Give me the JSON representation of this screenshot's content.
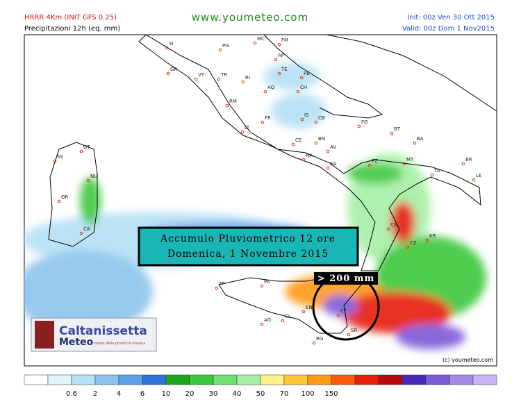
{
  "header": {
    "model": "HRRR 4Km (INIT GFS 0.25)",
    "field": "Precipitazioni 12h (eq. mm)",
    "site": "www.youmeteo.com",
    "init": "Init: 00z Ven  30 Ott 2015",
    "valid": "Valid: 00z Dom 1   Nov2015"
  },
  "banner": {
    "line1": "Accumulo Pluviometrico 12 ore",
    "line2": "Domenica, 1 Novembre 2015"
  },
  "highlight": "> 200 mm",
  "logo": {
    "name": "Caltanissetta",
    "sub": "Meteo",
    "tagline": "Il meteo della provincia nissena"
  },
  "copyright": "(c) youmeteo.com",
  "cities": [
    "SI",
    "PG",
    "MC",
    "FM",
    "AP",
    "TE",
    "GR",
    "VT",
    "TR",
    "RI",
    "AQ",
    "PE",
    "CH",
    "RM",
    "IS",
    "CB",
    "LT",
    "FR",
    "FG",
    "BT",
    "BA",
    "CE",
    "BN",
    "AV",
    "NA",
    "SA",
    "PZ",
    "MT",
    "TA",
    "BR",
    "LE",
    "SS",
    "OT",
    "NU",
    "OR",
    "CA",
    "CS",
    "KR",
    "CZ",
    "TP",
    "PA",
    "EN",
    "CT",
    "AG",
    "CL",
    "RG",
    "SR"
  ],
  "legend": {
    "labels": [
      0.6,
      2,
      4,
      6,
      10,
      20,
      30,
      40,
      50,
      70,
      100,
      150
    ],
    "colors": [
      "#ffffff",
      "#e0f4fb",
      "#b5e0f5",
      "#8cc4ee",
      "#5ea0e6",
      "#2e70dc",
      "#1ea51e",
      "#3cc83c",
      "#6fe06f",
      "#a6f0a6",
      "#fff08c",
      "#ffc832",
      "#ff9a14",
      "#ff5a0a",
      "#e61e0a",
      "#b40a0a",
      "#4a2ab8",
      "#7a5ad8",
      "#a88ae8",
      "#c8b4f4"
    ]
  }
}
